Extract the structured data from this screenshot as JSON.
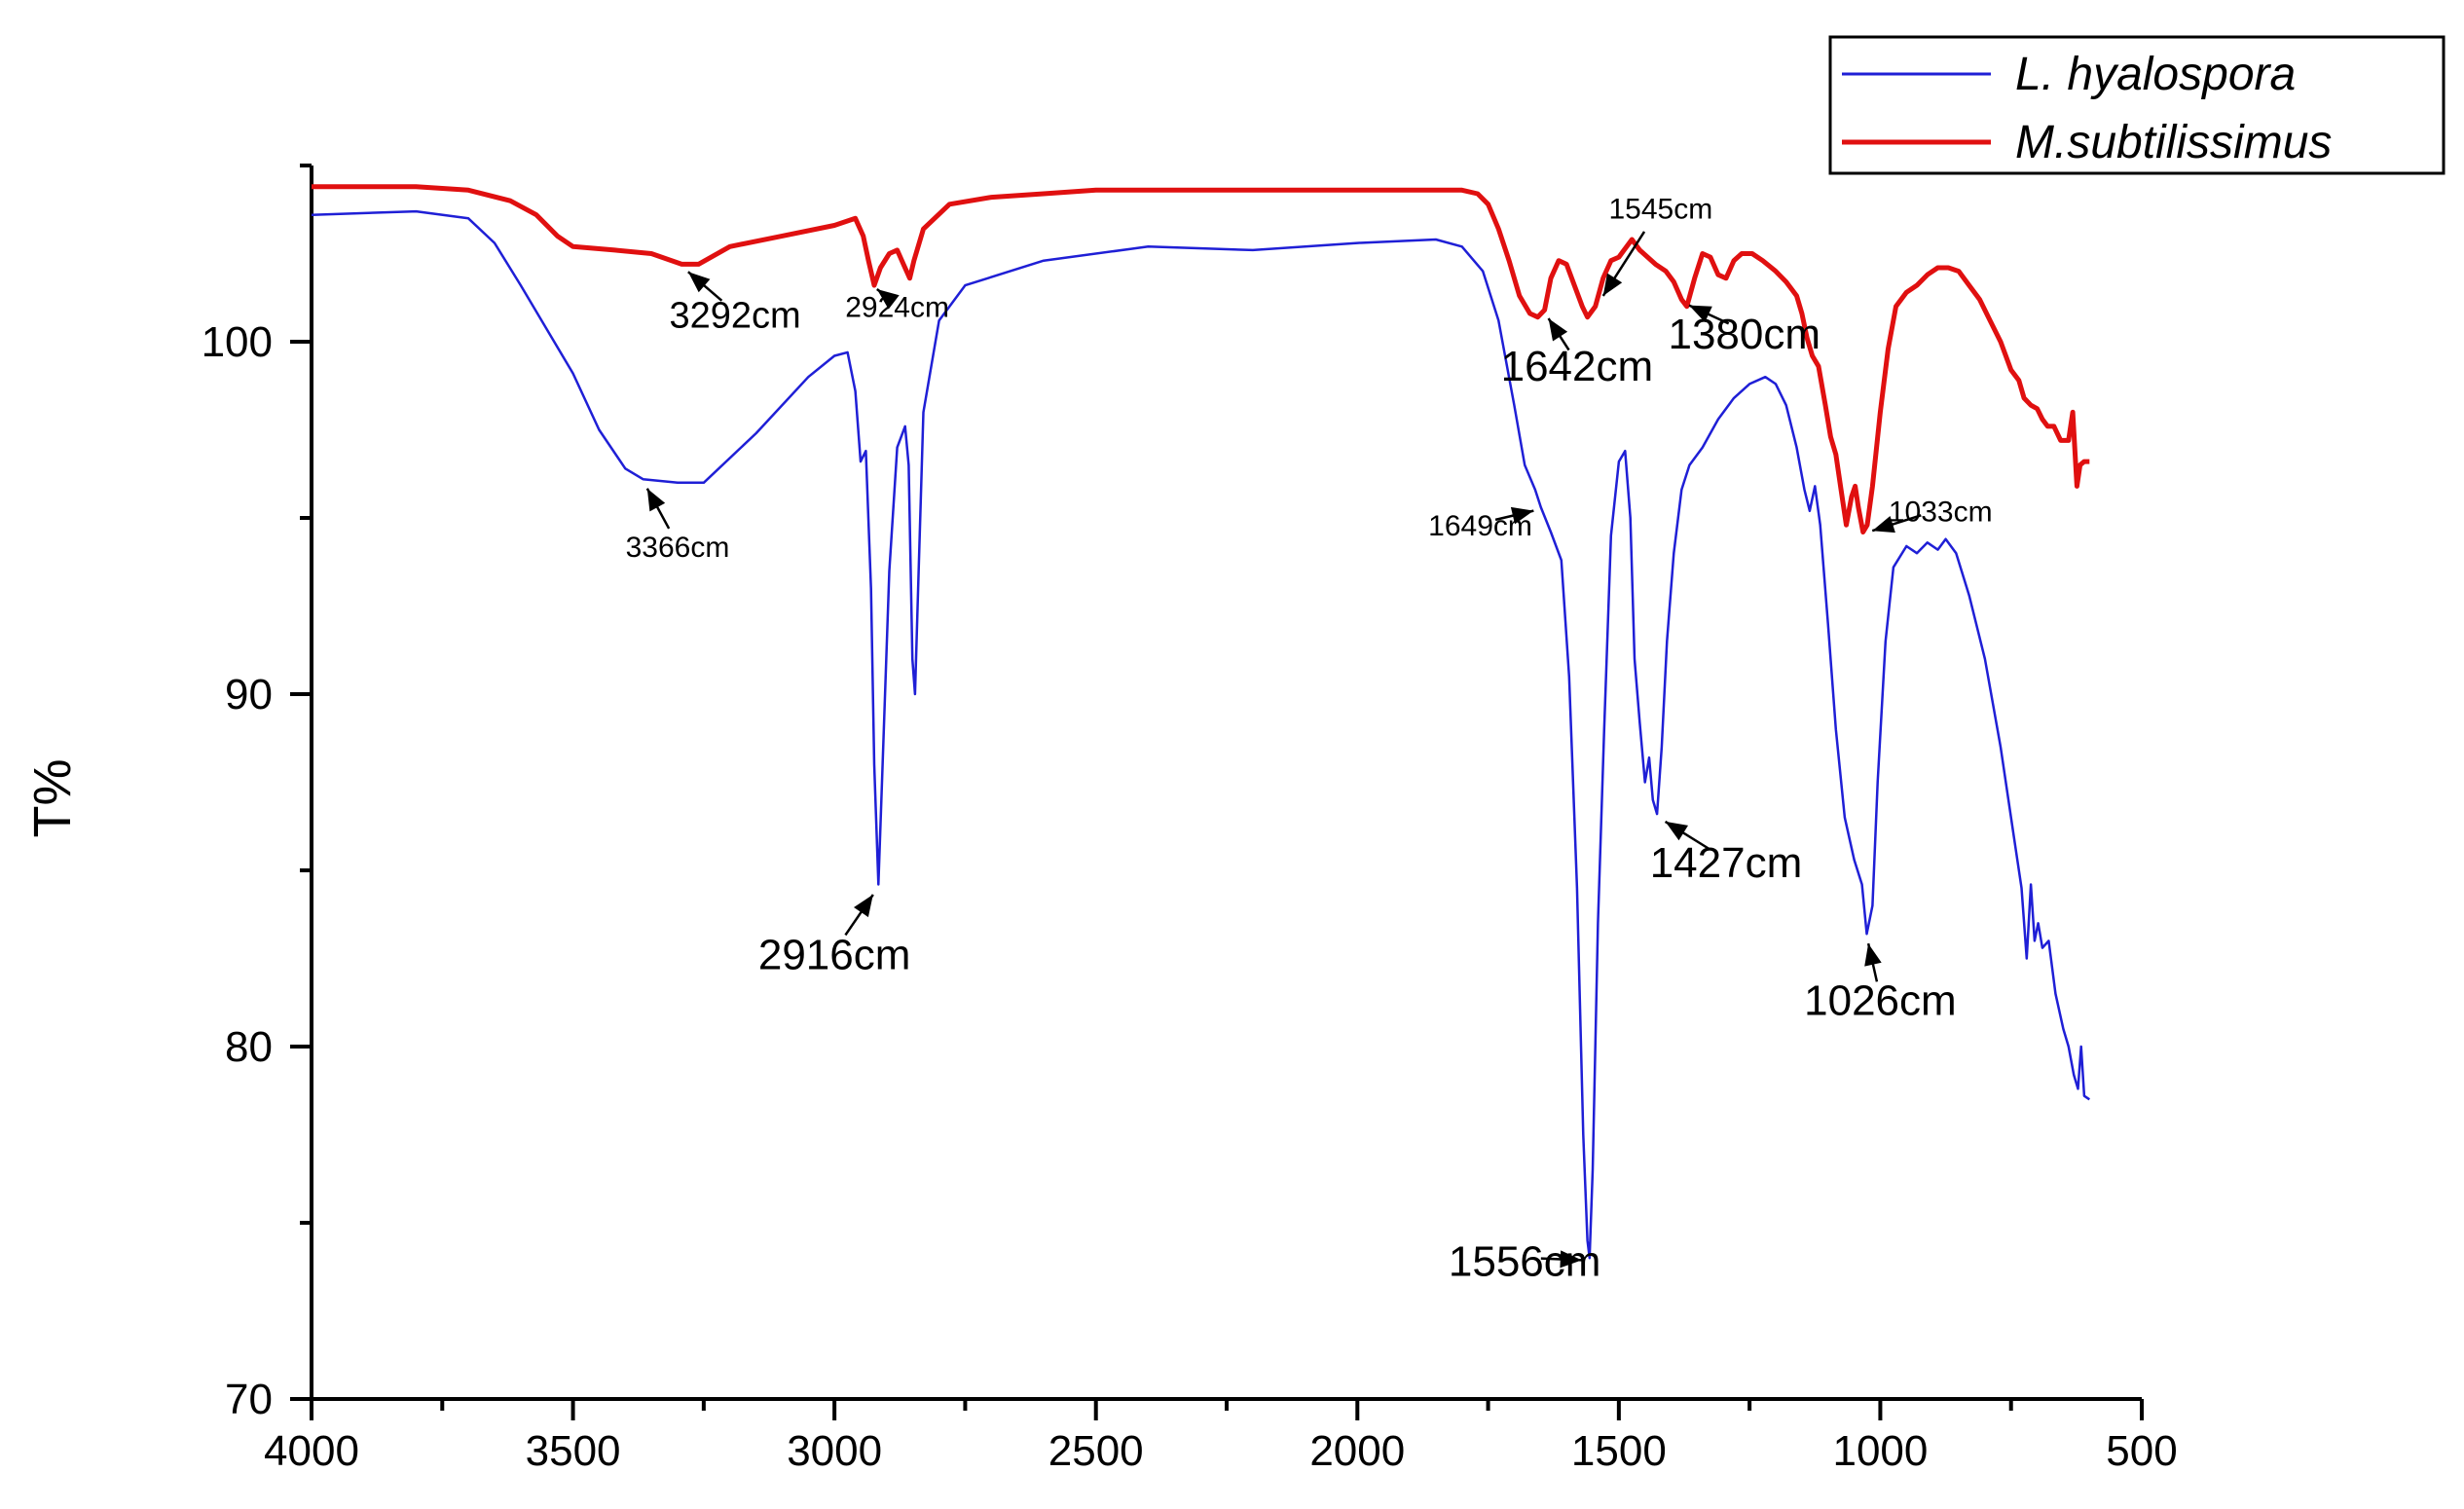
{
  "chart_data": {
    "type": "line",
    "title": "",
    "xlabel": "",
    "ylabel": "T%",
    "xlim": [
      4000,
      500
    ],
    "ylim": [
      70,
      105
    ],
    "x_ticks": [
      4000,
      3500,
      3000,
      2500,
      2000,
      1500,
      1000,
      500
    ],
    "y_ticks": [
      70,
      80,
      90,
      100
    ],
    "grid": false,
    "legend_position": "top-right",
    "series": [
      {
        "name": "L. hyalospora",
        "color": "#1f1fd6",
        "points": [
          [
            4000,
            103.6
          ],
          [
            3800,
            103.7
          ],
          [
            3700,
            103.5
          ],
          [
            3650,
            102.8
          ],
          [
            3600,
            101.6
          ],
          [
            3500,
            99.1
          ],
          [
            3450,
            97.5
          ],
          [
            3400,
            96.4
          ],
          [
            3366,
            96.1
          ],
          [
            3300,
            96.0
          ],
          [
            3250,
            96.0
          ],
          [
            3150,
            97.4
          ],
          [
            3050,
            99.0
          ],
          [
            3000,
            99.6
          ],
          [
            2975,
            99.7
          ],
          [
            2960,
            98.6
          ],
          [
            2950,
            96.6
          ],
          [
            2940,
            96.9
          ],
          [
            2930,
            93.0
          ],
          [
            2924,
            88.0
          ],
          [
            2916,
            84.6
          ],
          [
            2908,
            88.0
          ],
          [
            2895,
            93.5
          ],
          [
            2880,
            97.0
          ],
          [
            2865,
            97.6
          ],
          [
            2858,
            96.5
          ],
          [
            2851,
            91.0
          ],
          [
            2846,
            90.0
          ],
          [
            2840,
            93.0
          ],
          [
            2830,
            98.0
          ],
          [
            2800,
            100.6
          ],
          [
            2750,
            101.6
          ],
          [
            2600,
            102.3
          ],
          [
            2400,
            102.7
          ],
          [
            2200,
            102.6
          ],
          [
            2000,
            102.8
          ],
          [
            1850,
            102.9
          ],
          [
            1800,
            102.7
          ],
          [
            1760,
            102.0
          ],
          [
            1730,
            100.6
          ],
          [
            1700,
            98.2
          ],
          [
            1680,
            96.5
          ],
          [
            1660,
            95.8
          ],
          [
            1649,
            95.3
          ],
          [
            1630,
            94.6
          ],
          [
            1610,
            93.8
          ],
          [
            1595,
            90.5
          ],
          [
            1580,
            84.5
          ],
          [
            1568,
            77.5
          ],
          [
            1560,
            74.5
          ],
          [
            1556,
            74.0
          ],
          [
            1550,
            76.5
          ],
          [
            1540,
            83.5
          ],
          [
            1528,
            89.0
          ],
          [
            1515,
            94.5
          ],
          [
            1500,
            96.6
          ],
          [
            1488,
            96.9
          ],
          [
            1478,
            95.0
          ],
          [
            1470,
            91.0
          ],
          [
            1460,
            89.2
          ],
          [
            1450,
            87.5
          ],
          [
            1442,
            88.2
          ],
          [
            1435,
            87.0
          ],
          [
            1427,
            86.6
          ],
          [
            1418,
            88.5
          ],
          [
            1408,
            91.5
          ],
          [
            1395,
            94.0
          ],
          [
            1380,
            95.8
          ],
          [
            1365,
            96.5
          ],
          [
            1340,
            97.0
          ],
          [
            1310,
            97.8
          ],
          [
            1280,
            98.4
          ],
          [
            1250,
            98.8
          ],
          [
            1220,
            99.0
          ],
          [
            1200,
            98.8
          ],
          [
            1180,
            98.2
          ],
          [
            1160,
            97.0
          ],
          [
            1145,
            95.8
          ],
          [
            1135,
            95.2
          ],
          [
            1125,
            95.9
          ],
          [
            1115,
            94.8
          ],
          [
            1100,
            92.0
          ],
          [
            1085,
            89.0
          ],
          [
            1068,
            86.5
          ],
          [
            1050,
            85.3
          ],
          [
            1035,
            84.6
          ],
          [
            1026,
            83.2
          ],
          [
            1015,
            84.0
          ],
          [
            1005,
            87.5
          ],
          [
            990,
            91.5
          ],
          [
            975,
            93.6
          ],
          [
            950,
            94.2
          ],
          [
            930,
            94.0
          ],
          [
            910,
            94.3
          ],
          [
            890,
            94.1
          ],
          [
            875,
            94.4
          ],
          [
            855,
            94.0
          ],
          [
            830,
            92.8
          ],
          [
            800,
            91.0
          ],
          [
            770,
            88.5
          ],
          [
            745,
            86.0
          ],
          [
            730,
            84.5
          ],
          [
            720,
            82.5
          ],
          [
            712,
            84.6
          ],
          [
            705,
            83.0
          ],
          [
            698,
            83.5
          ],
          [
            690,
            82.8
          ],
          [
            678,
            83.0
          ],
          [
            665,
            81.5
          ],
          [
            650,
            80.5
          ],
          [
            640,
            80.0
          ],
          [
            630,
            79.2
          ],
          [
            622,
            78.8
          ],
          [
            616,
            80.0
          ],
          [
            610,
            78.6
          ],
          [
            600,
            78.5
          ]
        ]
      },
      {
        "name": "M.subtilissimus",
        "color": "#e01010",
        "points": [
          [
            4000,
            104.4
          ],
          [
            3800,
            104.4
          ],
          [
            3700,
            104.3
          ],
          [
            3620,
            104.0
          ],
          [
            3570,
            103.6
          ],
          [
            3530,
            103.0
          ],
          [
            3500,
            102.7
          ],
          [
            3420,
            102.6
          ],
          [
            3350,
            102.5
          ],
          [
            3292,
            102.2
          ],
          [
            3260,
            102.2
          ],
          [
            3200,
            102.7
          ],
          [
            3100,
            103.0
          ],
          [
            3000,
            103.3
          ],
          [
            2960,
            103.5
          ],
          [
            2945,
            103.0
          ],
          [
            2935,
            102.3
          ],
          [
            2924,
            101.6
          ],
          [
            2912,
            102.1
          ],
          [
            2895,
            102.5
          ],
          [
            2880,
            102.6
          ],
          [
            2868,
            102.2
          ],
          [
            2856,
            101.8
          ],
          [
            2848,
            102.3
          ],
          [
            2830,
            103.2
          ],
          [
            2780,
            103.9
          ],
          [
            2700,
            104.1
          ],
          [
            2600,
            104.2
          ],
          [
            2500,
            104.3
          ],
          [
            2400,
            104.3
          ],
          [
            2300,
            104.3
          ],
          [
            2200,
            104.3
          ],
          [
            2100,
            104.3
          ],
          [
            2000,
            104.3
          ],
          [
            1900,
            104.3
          ],
          [
            1800,
            104.3
          ],
          [
            1770,
            104.2
          ],
          [
            1750,
            103.9
          ],
          [
            1730,
            103.2
          ],
          [
            1710,
            102.3
          ],
          [
            1690,
            101.3
          ],
          [
            1670,
            100.8
          ],
          [
            1655,
            100.7
          ],
          [
            1642,
            100.9
          ],
          [
            1630,
            101.8
          ],
          [
            1615,
            102.3
          ],
          [
            1600,
            102.2
          ],
          [
            1585,
            101.6
          ],
          [
            1570,
            101.0
          ],
          [
            1560,
            100.7
          ],
          [
            1545,
            101.0
          ],
          [
            1530,
            101.8
          ],
          [
            1515,
            102.3
          ],
          [
            1500,
            102.4
          ],
          [
            1490,
            102.6
          ],
          [
            1475,
            102.9
          ],
          [
            1460,
            102.6
          ],
          [
            1445,
            102.4
          ],
          [
            1430,
            102.2
          ],
          [
            1410,
            102.0
          ],
          [
            1395,
            101.7
          ],
          [
            1380,
            101.2
          ],
          [
            1370,
            101.0
          ],
          [
            1355,
            101.8
          ],
          [
            1340,
            102.5
          ],
          [
            1325,
            102.4
          ],
          [
            1310,
            101.9
          ],
          [
            1295,
            101.8
          ],
          [
            1280,
            102.3
          ],
          [
            1265,
            102.5
          ],
          [
            1245,
            102.5
          ],
          [
            1225,
            102.3
          ],
          [
            1200,
            102.0
          ],
          [
            1180,
            101.7
          ],
          [
            1160,
            101.3
          ],
          [
            1150,
            100.8
          ],
          [
            1140,
            100.1
          ],
          [
            1130,
            99.6
          ],
          [
            1118,
            99.3
          ],
          [
            1105,
            98.2
          ],
          [
            1095,
            97.3
          ],
          [
            1085,
            96.8
          ],
          [
            1075,
            95.8
          ],
          [
            1065,
            94.8
          ],
          [
            1055,
            95.6
          ],
          [
            1048,
            95.9
          ],
          [
            1042,
            95.3
          ],
          [
            1033,
            94.6
          ],
          [
            1025,
            94.8
          ],
          [
            1015,
            95.9
          ],
          [
            1000,
            98.0
          ],
          [
            985,
            99.8
          ],
          [
            970,
            101.0
          ],
          [
            950,
            101.4
          ],
          [
            930,
            101.6
          ],
          [
            910,
            101.9
          ],
          [
            890,
            102.1
          ],
          [
            870,
            102.1
          ],
          [
            850,
            102.0
          ],
          [
            830,
            101.6
          ],
          [
            810,
            101.2
          ],
          [
            790,
            100.6
          ],
          [
            770,
            100.0
          ],
          [
            750,
            99.2
          ],
          [
            735,
            98.9
          ],
          [
            725,
            98.4
          ],
          [
            712,
            98.2
          ],
          [
            700,
            98.1
          ],
          [
            690,
            97.8
          ],
          [
            680,
            97.6
          ],
          [
            668,
            97.6
          ],
          [
            655,
            97.2
          ],
          [
            640,
            97.2
          ],
          [
            632,
            98.0
          ],
          [
            624,
            95.9
          ],
          [
            618,
            96.5
          ],
          [
            610,
            96.6
          ],
          [
            600,
            96.6
          ]
        ]
      }
    ],
    "annotations": [
      {
        "text": "3292cm",
        "x": 3292,
        "y": 102.2,
        "size": "medium",
        "label_x": 3190,
        "label_y": 100.4
      },
      {
        "text": "2924cm",
        "x": 2924,
        "y": 101.6,
        "size": "small",
        "label_x": 2880,
        "label_y": 100.7
      },
      {
        "text": "3366cm",
        "x": 3366,
        "y": 96.1,
        "size": "small",
        "label_x": 3300,
        "label_y": 93.9
      },
      {
        "text": "2916cm",
        "x": 2916,
        "y": 84.6,
        "size": "large",
        "label_x": 3000,
        "label_y": 82.2
      },
      {
        "text": "1642cm",
        "x": 1642,
        "y": 100.9,
        "size": "large",
        "label_x": 1580,
        "label_y": 98.9
      },
      {
        "text": "1545cm",
        "x": 1545,
        "y": 101.0,
        "size": "small",
        "label_x": 1420,
        "label_y": 103.5
      },
      {
        "text": "1380cm",
        "x": 1380,
        "y": 101.2,
        "size": "large",
        "label_x": 1260,
        "label_y": 99.8
      },
      {
        "text": "1649cm",
        "x": 1649,
        "y": 95.3,
        "size": "small",
        "label_x": 1765,
        "label_y": 94.5
      },
      {
        "text": "1033cm",
        "x": 1033,
        "y": 94.6,
        "size": "small",
        "label_x": 885,
        "label_y": 94.9
      },
      {
        "text": "1427cm",
        "x": 1427,
        "y": 86.6,
        "size": "large",
        "label_x": 1295,
        "label_y": 84.8
      },
      {
        "text": "1026cm",
        "x": 1026,
        "y": 83.2,
        "size": "large",
        "label_x": 1000,
        "label_y": 80.9
      },
      {
        "text": "1556cm",
        "x": 1556,
        "y": 74.0,
        "size": "large",
        "label_x": 1680,
        "label_y": 73.5
      }
    ]
  }
}
